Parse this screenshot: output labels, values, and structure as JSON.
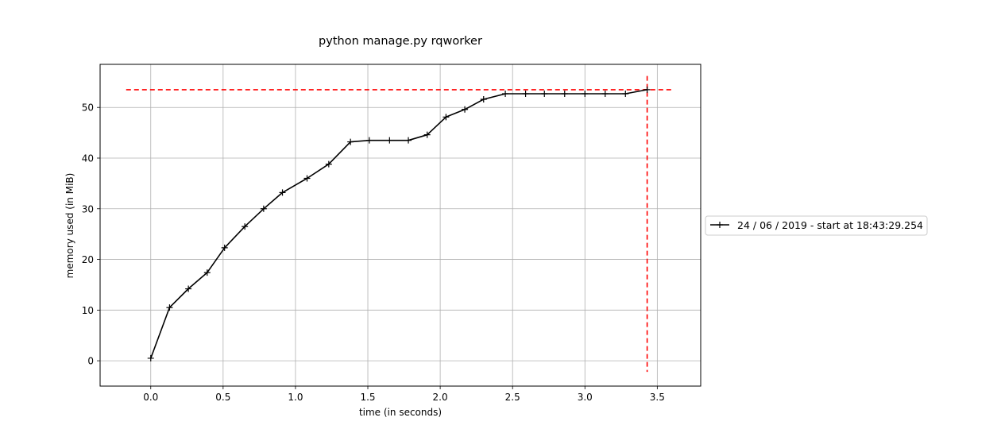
{
  "chart_data": {
    "type": "line",
    "title": "python manage.py rqworker",
    "xlabel": "time (in seconds)",
    "ylabel": "memory used (in MiB)",
    "xlim": [
      -0.35,
      3.8
    ],
    "ylim": [
      -5,
      58.5
    ],
    "xticks": [
      0.0,
      0.5,
      1.0,
      1.5,
      2.0,
      2.5,
      3.0,
      3.5
    ],
    "xtick_labels": [
      "0.0",
      "0.5",
      "1.0",
      "1.5",
      "2.0",
      "2.5",
      "3.0",
      "3.5"
    ],
    "yticks": [
      0,
      10,
      20,
      30,
      40,
      50
    ],
    "ytick_labels": [
      "0",
      "10",
      "20",
      "30",
      "40",
      "50"
    ],
    "grid": true,
    "legend_position": "outside-right",
    "series": [
      {
        "name": "24 / 06 / 2019 - start at 18:43:29.254",
        "color": "#000000",
        "marker": "plus",
        "x": [
          0.0,
          0.13,
          0.26,
          0.39,
          0.51,
          0.65,
          0.78,
          0.91,
          1.08,
          1.23,
          1.38,
          1.51,
          1.65,
          1.78,
          1.91,
          2.04,
          2.17,
          2.3,
          2.45,
          2.59,
          2.72,
          2.86,
          3.0,
          3.14,
          3.28,
          3.43
        ],
        "y": [
          0.5,
          10.5,
          14.2,
          17.4,
          22.3,
          26.5,
          30.0,
          33.2,
          36.0,
          38.8,
          43.2,
          43.5,
          43.5,
          43.5,
          44.6,
          48.1,
          49.6,
          51.6,
          52.7,
          52.7,
          52.7,
          52.7,
          52.7,
          52.7,
          52.7,
          53.5
        ]
      }
    ],
    "reference_lines": [
      {
        "orientation": "horizontal",
        "y": 53.5,
        "x_start": -0.17,
        "x_end": 3.6,
        "color": "#ff0000",
        "style": "dashed"
      },
      {
        "orientation": "vertical",
        "x": 3.43,
        "y_start": -2.2,
        "y_end": 56.2,
        "color": "#ff0000",
        "style": "dashed"
      }
    ],
    "colors": {
      "grid": "#b0b0b0",
      "reference": "#ff0000",
      "line": "#000000"
    }
  }
}
